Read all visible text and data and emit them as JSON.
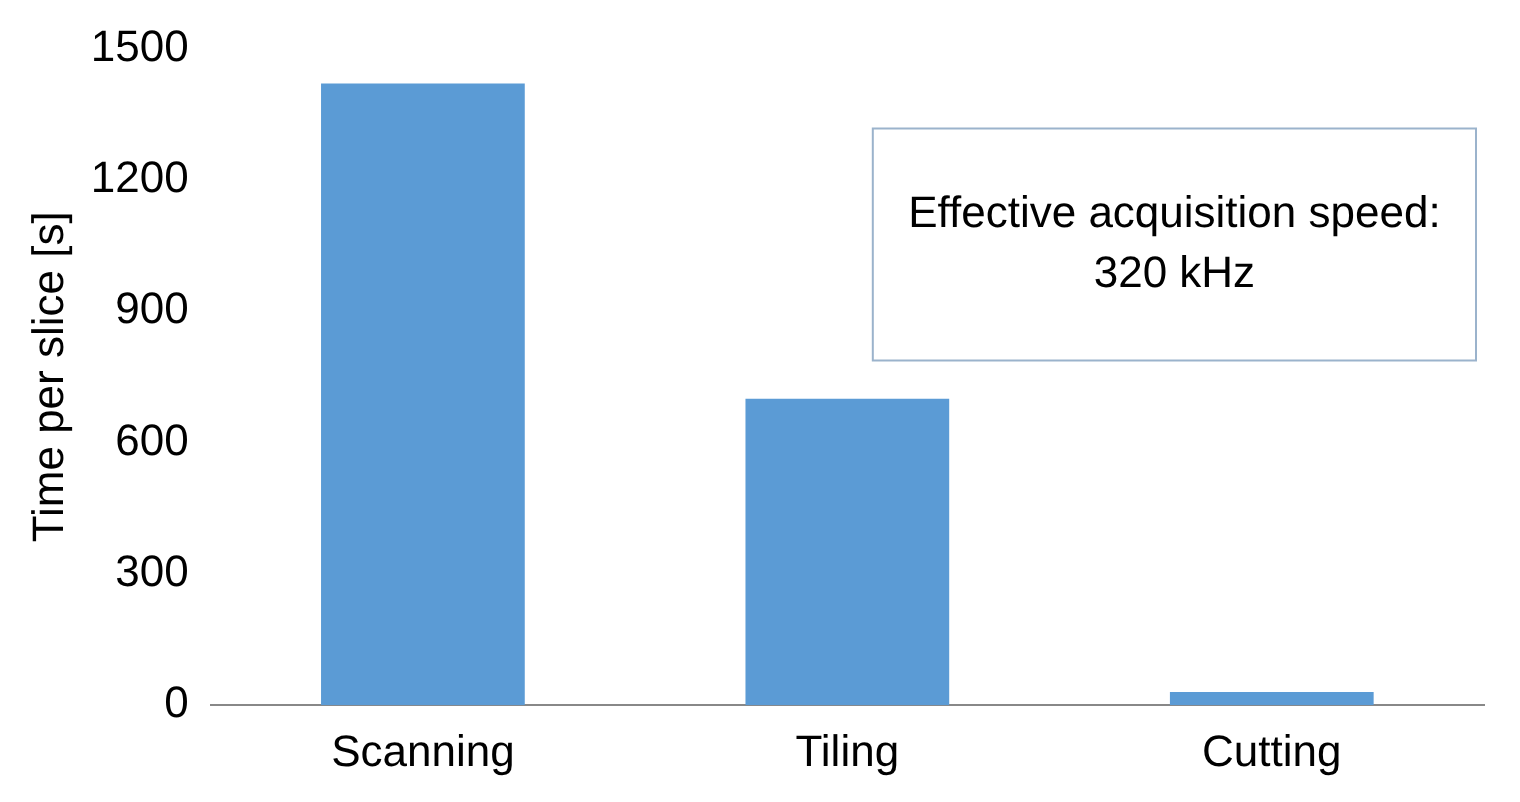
{
  "chart_data": {
    "type": "bar",
    "ylabel": "Time per slice [s]",
    "categories": [
      "Scanning",
      "Tiling",
      "Cutting"
    ],
    "values": [
      1420,
      700,
      30
    ],
    "color": "#5b9bd5",
    "ylim": [
      0,
      1500
    ],
    "yticks": [
      0,
      300,
      600,
      900,
      1200,
      1500
    ],
    "grid": false,
    "annotations": [
      "Effective acquisition speed:\n320 kHz"
    ]
  }
}
